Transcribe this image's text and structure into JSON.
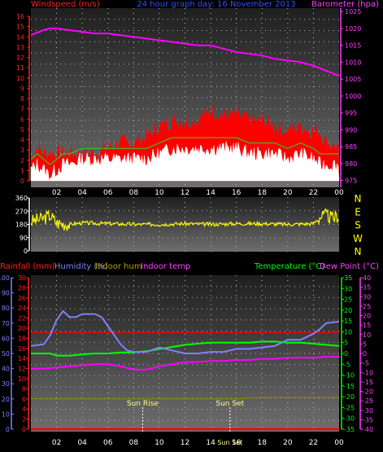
{
  "chart_data": [
    {
      "type": "line",
      "title": "24 hour graph day:  16 November 2013",
      "left_label": "Windspeed (m/s)",
      "right_label": "Barometer (hpa)",
      "x_ticks": [
        "02",
        "04",
        "06",
        "08",
        "10",
        "12",
        "14",
        "16",
        "18",
        "20",
        "22",
        "00"
      ],
      "left_ticks": [
        "0",
        "1",
        "2",
        "3",
        "4",
        "5",
        "6",
        "7",
        "8",
        "9",
        "10",
        "11",
        "12",
        "13",
        "14",
        "15",
        "16"
      ],
      "right_ticks": [
        "975",
        "980",
        "985",
        "990",
        "995",
        "1000",
        "1005",
        "1010",
        "1015",
        "1020",
        "1025"
      ],
      "ylim_left": [
        0,
        16
      ],
      "ylim_right": [
        973,
        1026
      ],
      "series": [
        {
          "name": "Barometer (hpa)",
          "axis": "right",
          "color": "#ff00ff",
          "x": [
            0,
            1,
            1.5,
            2,
            3,
            4,
            5,
            6,
            7,
            8,
            9,
            10,
            11,
            12,
            13,
            14,
            15,
            16,
            17,
            18,
            19,
            20,
            21,
            22,
            23,
            24
          ],
          "y": [
            1018,
            1019.5,
            1020,
            1020,
            1019.5,
            1019,
            1018.5,
            1018.5,
            1018,
            1017.5,
            1017,
            1016.5,
            1016,
            1015.5,
            1015,
            1015,
            1014,
            1013,
            1012.5,
            1012,
            1011,
            1010.5,
            1010,
            1009,
            1007.5,
            1006
          ]
        },
        {
          "name": "Wind gust",
          "axis": "left",
          "color": "#ff0000",
          "x": [
            0,
            0.5,
            1,
            1.5,
            2,
            2.5,
            3,
            4,
            5,
            6,
            7,
            8,
            9,
            10,
            11,
            12,
            13,
            14,
            15,
            16,
            17,
            18,
            19,
            20,
            21,
            22,
            22.5,
            23,
            24
          ],
          "y": [
            2,
            3,
            2.5,
            2.5,
            2.5,
            2.5,
            2.5,
            2.5,
            2.5,
            3,
            3.5,
            3.5,
            4,
            5,
            5.5,
            5.5,
            5.5,
            6.5,
            6,
            6,
            5.5,
            5.5,
            5,
            4.5,
            5,
            4.5,
            4.5,
            3.5,
            3
          ]
        },
        {
          "name": "Wind speed",
          "axis": "left",
          "color": "#ffffff",
          "x": [
            0,
            0.5,
            1,
            1.5,
            2,
            2.5,
            3,
            4,
            5,
            6,
            7,
            8,
            9,
            10,
            11,
            12,
            13,
            14,
            15,
            16,
            17,
            18,
            19,
            20,
            21,
            22,
            22.5,
            23,
            24
          ],
          "y": [
            1,
            1.5,
            1,
            0.5,
            1,
            1.5,
            1.5,
            2,
            2,
            2,
            2,
            2,
            2,
            2.5,
            3,
            3,
            3,
            3,
            3,
            3,
            2.5,
            2.5,
            2.5,
            2,
            2.5,
            2,
            1.5,
            1.5,
            1.5
          ]
        }
      ]
    },
    {
      "type": "line",
      "right_labels": [
        "N",
        "W",
        "S",
        "E",
        "N"
      ],
      "left_ticks": [
        "0",
        "90",
        "180",
        "270",
        "360"
      ],
      "ylim": [
        0,
        360
      ],
      "series": [
        {
          "name": "Wind direction",
          "color": "#ffff00",
          "x": [
            0,
            1,
            1.5,
            2,
            3,
            4,
            6,
            8,
            10,
            12,
            14,
            16,
            18,
            20,
            22,
            22.5,
            23,
            23.5,
            24
          ],
          "y": [
            200,
            220,
            240,
            190,
            180,
            190,
            185,
            180,
            180,
            185,
            180,
            185,
            185,
            180,
            185,
            230,
            240,
            220,
            240
          ]
        }
      ]
    },
    {
      "type": "line",
      "labels": {
        "rainfall": "Rainfall (mm)",
        "humidity": "Humidity (%)",
        "indoor_hum": "Indoor hum",
        "indoor_temp": "Indoor temp",
        "temperature": "Temperature (°C)",
        "dew_point": "Dew Point (°C)"
      },
      "x_ticks": [
        "02",
        "04",
        "06",
        "08",
        "10",
        "12",
        "14",
        "16",
        "18",
        "20",
        "22",
        "00"
      ],
      "rain_ticks": [
        "0",
        "2",
        "4",
        "6",
        "8",
        "10",
        "12",
        "14",
        "16",
        "18",
        "20",
        "22",
        "24",
        "26",
        "28",
        "30"
      ],
      "hum_ticks": [
        "0",
        "10",
        "20",
        "30",
        "40",
        "50",
        "60",
        "70",
        "80",
        "90",
        "100"
      ],
      "temp_ticks": [
        "-35",
        "-30",
        "-25",
        "-20",
        "-15",
        "-10",
        "-5",
        "0",
        "5",
        "10",
        "15",
        "20",
        "25",
        "30",
        "35"
      ],
      "in_temp_ticks": [
        "-40",
        "-35",
        "-30",
        "-25",
        "-20",
        "-15",
        "-10",
        "-5",
        "0",
        "5",
        "10",
        "15",
        "20",
        "25",
        "30",
        "35",
        "40"
      ],
      "ylim_humidity": [
        0,
        100
      ],
      "ylim_temperature": [
        -35,
        35
      ],
      "sun_rise_label": "Sun Rise",
      "sun_set_label": "Sun Set",
      "sun_rise_x": 8.7,
      "sun_set_x": 15.5,
      "series": [
        {
          "name": "Humidity (%)",
          "color": "#8080ff",
          "x": [
            0,
            1,
            1.5,
            2,
            2.5,
            3,
            3.5,
            4,
            5,
            5.5,
            6,
            6.5,
            7,
            7.5,
            8,
            9,
            10,
            11,
            12,
            13,
            14,
            15,
            16,
            17,
            18,
            19,
            20,
            21,
            22,
            22.5,
            23,
            24
          ],
          "y": [
            55,
            56,
            62,
            72,
            78,
            74,
            74,
            76,
            76,
            74,
            68,
            62,
            56,
            52,
            51,
            51,
            54,
            52,
            50,
            50,
            51,
            51,
            53,
            53,
            54,
            55,
            59,
            59,
            63,
            66,
            70,
            71
          ]
        },
        {
          "name": "Temperature (°C)",
          "color": "#00ff00",
          "x": [
            0,
            1,
            1.5,
            2,
            3,
            4,
            5,
            6,
            7,
            8,
            9,
            10,
            11,
            12,
            13,
            14,
            15,
            16,
            17,
            18,
            19,
            20,
            21,
            22,
            23,
            24
          ],
          "y": [
            0,
            0,
            0,
            -1,
            -1,
            -0.5,
            0,
            0,
            0.5,
            0.5,
            1,
            2,
            3,
            4,
            4.5,
            5,
            5,
            5,
            5,
            5.5,
            5.5,
            5,
            5,
            4.5,
            4,
            3.5
          ]
        },
        {
          "name": "Dew Point (°C)",
          "color": "#ff00ff",
          "x": [
            0,
            1,
            2,
            3,
            4,
            5,
            6,
            7,
            8,
            9,
            10,
            11,
            12,
            13,
            14,
            15,
            16,
            17,
            18,
            19,
            20,
            21,
            22,
            23,
            24
          ],
          "y": [
            -7,
            -7,
            -6.5,
            -6,
            -5.5,
            -5,
            -5,
            -6,
            -7.5,
            -7.5,
            -6,
            -5,
            -4,
            -4,
            -3.5,
            -3.5,
            -3,
            -3,
            -2.5,
            -2.5,
            -2,
            -2,
            -2,
            -1.5,
            -1.5
          ]
        },
        {
          "name": "Indoor hum",
          "color": "#808000",
          "x": [
            0,
            8,
            16,
            18,
            20,
            24
          ],
          "y": [
            20,
            20,
            20,
            21,
            21,
            21
          ]
        },
        {
          "name": "Indoor temp",
          "color": "#ff0000",
          "x": [
            0,
            24
          ],
          "y": [
            11,
            11
          ]
        },
        {
          "name": "Rainfall (mm)",
          "color": "#ff0000",
          "x": [
            0,
            24
          ],
          "y": [
            0,
            0
          ]
        }
      ]
    }
  ]
}
